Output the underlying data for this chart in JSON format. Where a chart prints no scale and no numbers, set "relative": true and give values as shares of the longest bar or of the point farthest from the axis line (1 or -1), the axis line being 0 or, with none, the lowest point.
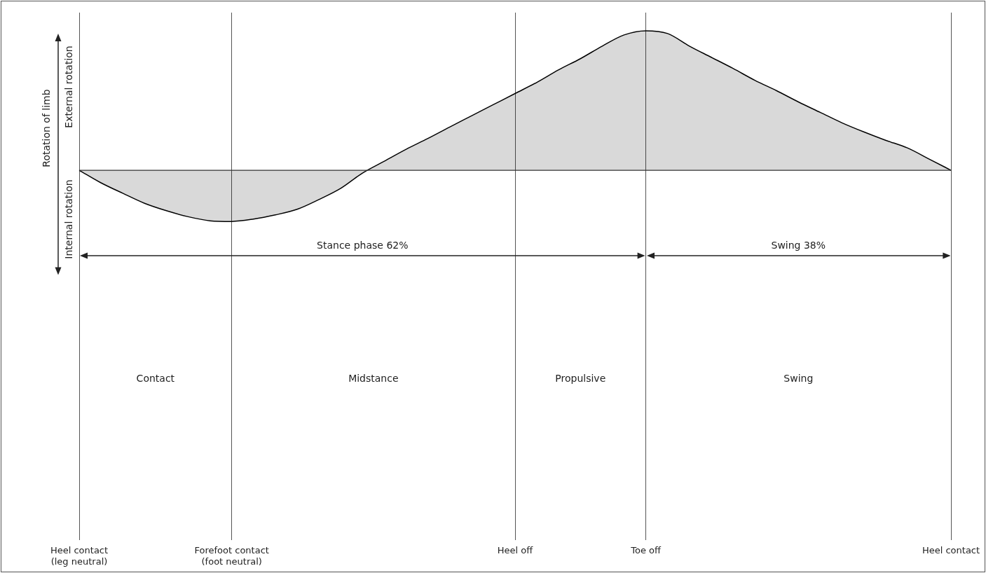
{
  "chart_data": {
    "type": "area",
    "relative": true,
    "ylabel": "Rotation of limb",
    "annotations": [
      "External rotation",
      "Internal rotation",
      "Stance phase 62%",
      "Swing 38%",
      "Contact",
      "Midstance",
      "Propulsive",
      "Swing"
    ],
    "categories": [
      "Heel contact\n(leg neutral)",
      null,
      null,
      null,
      null,
      null,
      null,
      "Forefoot contact\n(foot neutral)",
      null,
      null,
      null,
      null,
      null,
      null,
      null,
      null,
      null,
      null,
      null,
      null,
      "Heel off",
      null,
      null,
      null,
      null,
      null,
      "Toe off",
      null,
      null,
      null,
      null,
      null,
      null,
      null,
      null,
      null,
      null,
      null,
      null,
      null,
      "Heel contact"
    ],
    "series": [
      {
        "color": "#000000",
        "values": [
          0,
          -0.09,
          -0.165,
          -0.237,
          -0.29,
          -0.333,
          -0.362,
          -0.367,
          -0.35,
          -0.32,
          -0.28,
          -0.21,
          -0.13,
          -0.02,
          0.065,
          0.15,
          0.228,
          0.31,
          0.39,
          0.47,
          0.55,
          0.63,
          0.72,
          0.8,
          0.89,
          0.97,
          1,
          0.98,
          0.89,
          0.81,
          0.73,
          0.645,
          0.57,
          0.49,
          0.415,
          0.34,
          0.275,
          0.215,
          0.16,
          0.08,
          0
        ]
      }
    ],
    "grid": "x",
    "legend": false,
    "marker": "none"
  }
}
